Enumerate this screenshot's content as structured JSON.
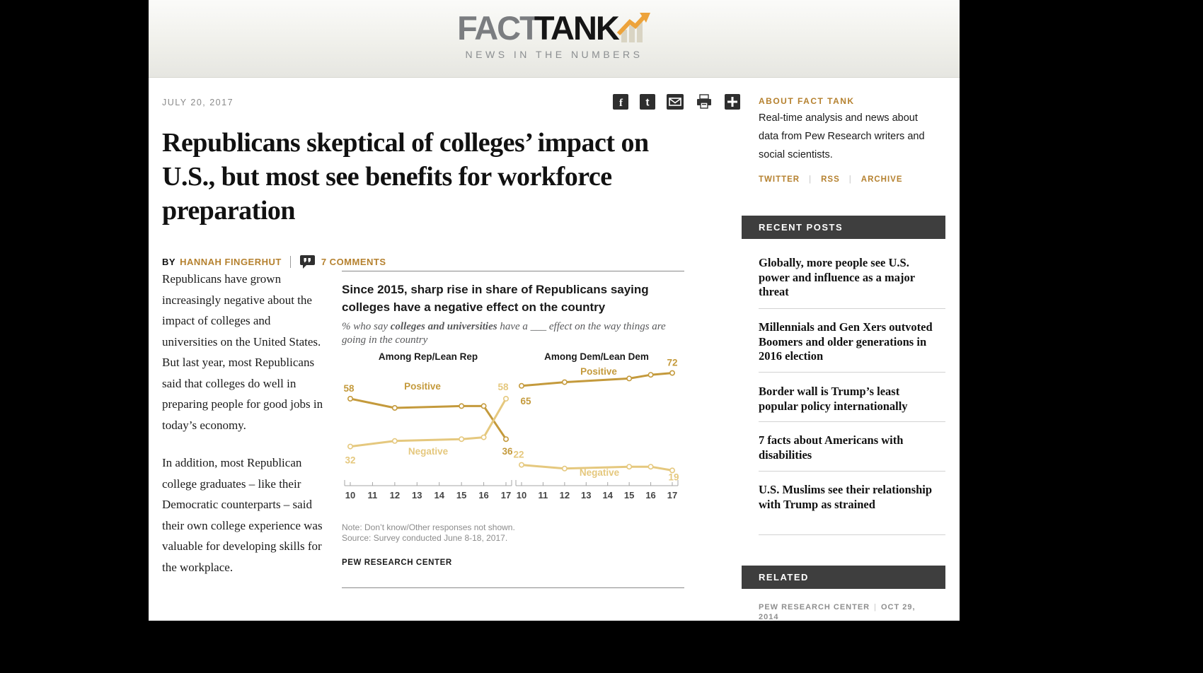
{
  "header": {
    "logo_fact": "FACT",
    "logo_tank": "TANK",
    "tagline": "NEWS IN THE NUMBERS"
  },
  "share": {
    "icons": [
      "facebook-icon",
      "twitter-icon",
      "email-icon",
      "print-icon",
      "share-more-icon"
    ]
  },
  "article": {
    "date": "JULY 20, 2017",
    "title": "Republicans skeptical of colleges’ impact on U.S., but most see benefits for workforce preparation",
    "byline_prefix": "BY",
    "author": "HANNAH FINGERHUT",
    "comments_label": "7 COMMENTS",
    "paragraphs": [
      "Republicans have grown increasingly negative about the impact of colleges and universities on the United States. But last year, most Republicans said that colleges do well in preparing people for good jobs in today’s economy.",
      "In addition, most Republican college graduates – like their Democratic counterparts – said their own college experience was valuable for developing skills for the workplace."
    ]
  },
  "chart_data": {
    "type": "line",
    "title": "Since 2015, sharp rise in share of Republicans saying colleges have a negative effect on the country",
    "subtitle_pre": "% who say ",
    "subtitle_bold": "colleges and universities",
    "subtitle_post": " have a ___ effect on the way things are going in the country",
    "years": [
      2010,
      2012,
      2015,
      2016,
      2017
    ],
    "x_tick_labels": [
      "10",
      "11",
      "12",
      "13",
      "14",
      "15",
      "16",
      "17"
    ],
    "xlim": [
      2010,
      2017
    ],
    "grid": false,
    "legend": "inline-series-labels",
    "panels": [
      {
        "heading": "Among Rep/Lean Rep",
        "series": [
          {
            "name": "Positive",
            "color": "#C49A3C",
            "values": [
              58,
              53,
              54,
              54,
              36
            ],
            "first_label": "58",
            "last_label": "36",
            "name_pos": [
              114,
              60
            ],
            "first_pos": [
              -2,
              -10
            ],
            "last_pos": [
              2,
              22
            ]
          },
          {
            "name": "Negative",
            "color": "#E5C87E",
            "values": [
              32,
              35,
              36,
              37,
              58
            ],
            "first_label": "32",
            "last_label": "58",
            "name_pos": [
              122,
              152
            ],
            "first_pos": [
              0,
              24
            ],
            "last_pos": [
              -4,
              -12
            ]
          }
        ]
      },
      {
        "heading": "Among Dem/Lean Dem",
        "series": [
          {
            "name": "Positive",
            "color": "#C49A3C",
            "values": [
              65,
              67,
              69,
              71,
              72
            ],
            "first_label": "65",
            "last_label": "72",
            "name_pos": [
              363,
              39
            ],
            "first_pos": [
              6,
              26
            ],
            "last_pos": [
              0,
              -10
            ]
          },
          {
            "name": "Negative",
            "color": "#E5C87E",
            "values": [
              22,
              20,
              21,
              21,
              19
            ],
            "first_label": "22",
            "last_label": "19",
            "name_pos": [
              364,
              182
            ],
            "first_pos": [
              -4,
              -10
            ],
            "last_pos": [
              2,
              14
            ]
          }
        ]
      }
    ],
    "note": "Note: Don’t know/Other responses not shown.",
    "source": "Source: Survey conducted June 8-18, 2017.",
    "credit": "PEW RESEARCH CENTER",
    "layout": {
      "panel_x": [
        [
          12,
          232
        ],
        [
          254,
          467
        ]
      ],
      "axis_y": 196,
      "tick_label_y": 214,
      "heading_x": [
        122,
        360
      ],
      "heading_y": 18,
      "y_ref_v": 58,
      "y_ref_y": 73,
      "y_scale": 2.6
    }
  },
  "sidebar": {
    "about": {
      "title": "ABOUT FACT TANK",
      "text": "Real-time analysis and news about data from Pew Research writers and social scientists.",
      "links": [
        "TWITTER",
        "RSS",
        "ARCHIVE"
      ]
    },
    "recent_posts": {
      "title": "RECENT POSTS",
      "items": [
        "Globally, more people see U.S. power and influence as a major threat",
        "Millennials and Gen Xers outvoted Boomers and older generations in 2016 election",
        "Border wall is Trump’s least popular policy internationally",
        "7 facts about Americans with disabilities",
        "U.S. Muslims see their relationship with Trump as strained"
      ]
    },
    "related": {
      "title": "RELATED",
      "credit_source": "PEW RESEARCH CENTER",
      "credit_date": "OCT 29, 2014"
    }
  },
  "colors": {
    "gold_link": "#B5812F",
    "chart_positive": "#C49A3C",
    "chart_negative": "#E5C87E",
    "bar_dark": "#3E3E3E"
  }
}
